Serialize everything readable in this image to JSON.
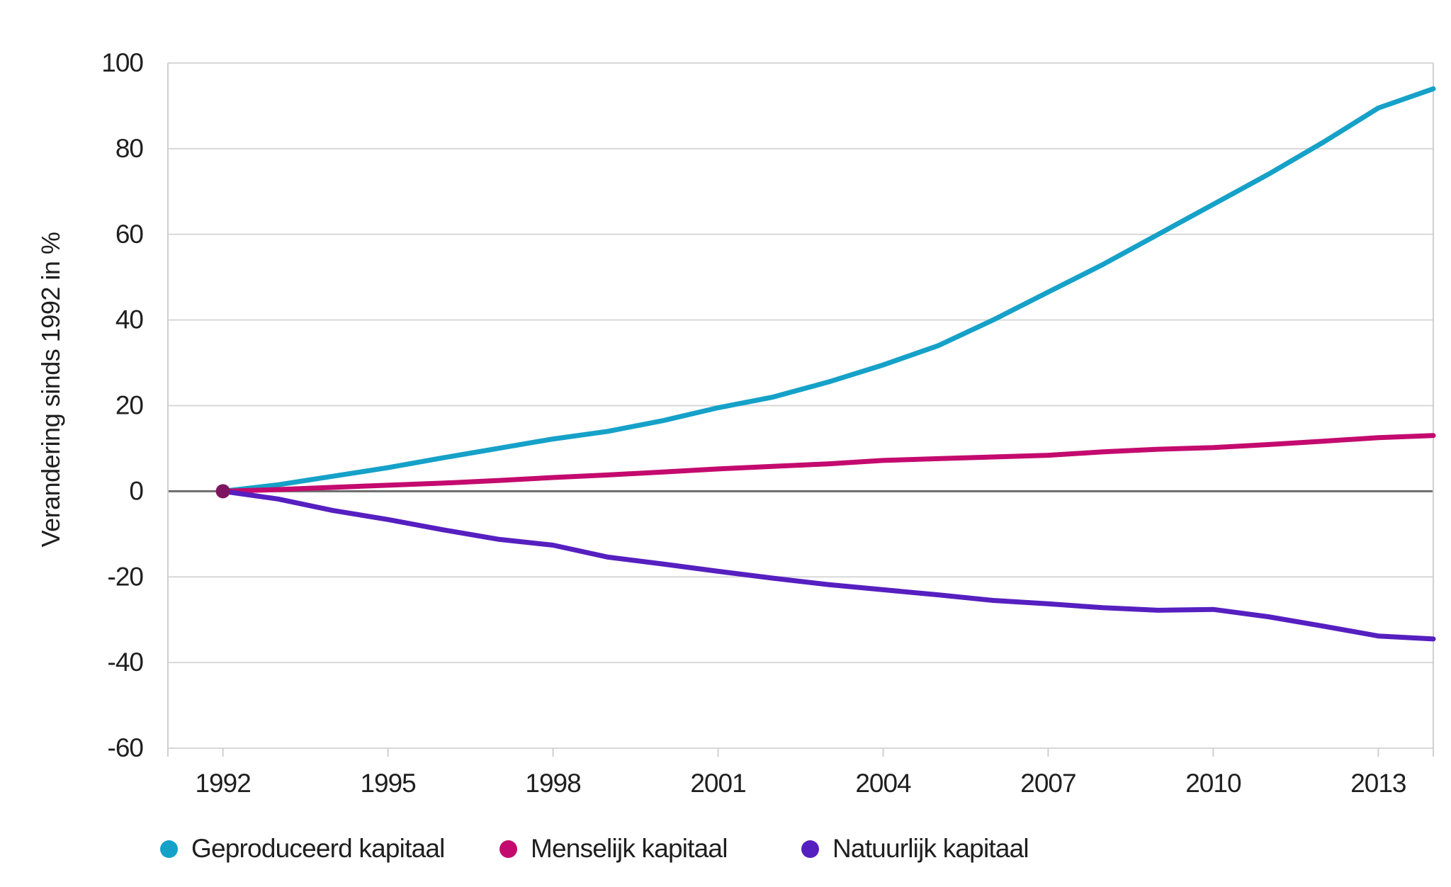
{
  "chart_data": {
    "type": "line",
    "title": "",
    "ylabel": "Verandering sinds 1992 in %",
    "xlabel": "",
    "xlim": [
      1991,
      2014
    ],
    "ylim": [
      -60,
      100
    ],
    "x_ticks": [
      1992,
      1995,
      1998,
      2001,
      2004,
      2007,
      2010,
      2013
    ],
    "y_ticks": [
      100,
      80,
      60,
      40,
      20,
      0,
      -20,
      -40,
      -60
    ],
    "grid": "horizontal",
    "legend_position": "bottom",
    "x": [
      1992,
      1993,
      1994,
      1995,
      1996,
      1997,
      1998,
      1999,
      2000,
      2001,
      2002,
      2003,
      2004,
      2005,
      2006,
      2007,
      2008,
      2009,
      2010,
      2011,
      2012,
      2013,
      2014
    ],
    "series": [
      {
        "name": "Geproduceerd kapitaal",
        "color": "#15a1c8",
        "values": [
          0,
          1.5,
          3.5,
          5.5,
          7.8,
          10,
          12.2,
          14,
          16.5,
          19.5,
          22,
          25.5,
          29.5,
          34,
          40,
          46.5,
          53,
          60,
          67,
          74,
          81.5,
          89.5,
          94
        ]
      },
      {
        "name": "Menselijk kapitaal",
        "color": "#c40a6e",
        "values": [
          0,
          0.4,
          0.9,
          1.4,
          1.9,
          2.5,
          3.2,
          3.8,
          4.5,
          5.2,
          5.8,
          6.4,
          7.2,
          7.6,
          8.0,
          8.4,
          9.2,
          9.8,
          10.2,
          10.9,
          11.7,
          12.5,
          13
        ]
      },
      {
        "name": "Natuurlijk kapitaal",
        "color": "#561fc0",
        "values": [
          0,
          -1.8,
          -4.5,
          -6.6,
          -9,
          -11.2,
          -12.6,
          -15.4,
          -17,
          -18.7,
          -20.3,
          -21.8,
          -23,
          -24.2,
          -25.5,
          -26.3,
          -27.2,
          -27.8,
          -27.6,
          -29.3,
          -31.5,
          -33.8,
          -34.5
        ]
      }
    ],
    "origin_marker": {
      "x": 1992,
      "value": 0,
      "color": "#7e1560"
    },
    "colors": {
      "gridline": "#d8d8d8",
      "zero_line": "#6b6b6b",
      "border": "#cfcfcf",
      "tick_text": "#1f1f1f"
    }
  }
}
